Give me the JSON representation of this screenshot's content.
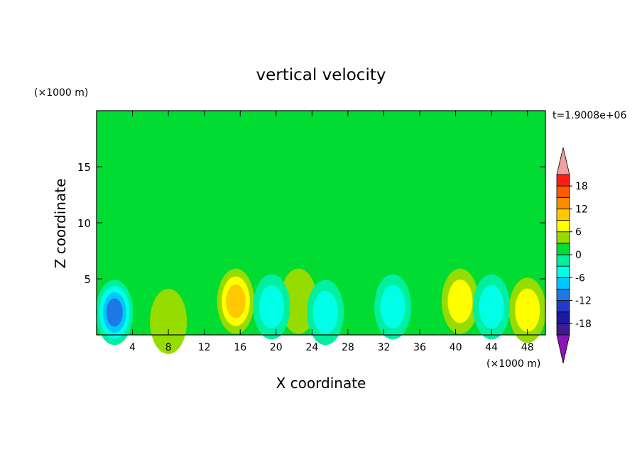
{
  "chart_data": {
    "type": "heatmap",
    "title": "vertical velocity",
    "xlabel": "X coordinate",
    "ylabel": "Z coordinate",
    "x_unit": "(×1000 m)",
    "y_unit": "(×1000 m)",
    "time_label": "t=1.9008e+06",
    "xlim": [
      0,
      50
    ],
    "ylim": [
      0,
      20
    ],
    "x_ticks": [
      4,
      8,
      12,
      16,
      20,
      24,
      28,
      32,
      36,
      40,
      44,
      48
    ],
    "y_ticks": [
      5,
      10,
      15
    ],
    "colorbar": {
      "levels": [
        -21,
        -18,
        -15,
        -12,
        -9,
        -6,
        -3,
        0,
        3,
        6,
        9,
        12,
        15,
        18,
        21
      ],
      "tick_labels": [
        "18",
        "12",
        "6",
        "0",
        "-6",
        "-12",
        "-18"
      ],
      "tick_values": [
        18,
        12,
        6,
        0,
        -6,
        -12,
        -18
      ],
      "colors": [
        "#3e1a8e",
        "#1a1a9e",
        "#1e3cc8",
        "#1e78e6",
        "#00c8ff",
        "#00ffe6",
        "#00f0a0",
        "#00dc32",
        "#96dc00",
        "#ffff00",
        "#ffc800",
        "#ff8c00",
        "#ff5a00",
        "#ff1e14"
      ],
      "under_color": "#8c14b4",
      "over_color": "#f0a0a0"
    },
    "background_value": 1.5,
    "features": [
      {
        "x": 15.5,
        "z": 3.0,
        "value": 12
      },
      {
        "x": 40.5,
        "z": 3.0,
        "value": 9
      },
      {
        "x": 48.0,
        "z": 2.2,
        "value": 9
      },
      {
        "x": 22.5,
        "z": 3.0,
        "value": 6
      },
      {
        "x": 8.0,
        "z": 1.2,
        "value": 5
      },
      {
        "x": 2.0,
        "z": 2.0,
        "value": -12
      },
      {
        "x": 19.5,
        "z": 2.5,
        "value": -5
      },
      {
        "x": 25.5,
        "z": 2.0,
        "value": -5
      },
      {
        "x": 33.0,
        "z": 2.5,
        "value": -5
      },
      {
        "x": 44.0,
        "z": 2.5,
        "value": -5
      }
    ]
  }
}
